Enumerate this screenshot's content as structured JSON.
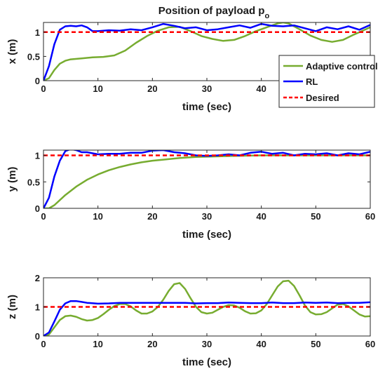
{
  "figure": {
    "title_main": "Position of payload p",
    "title_sub": "o"
  },
  "legend": [
    {
      "label": "Adaptive control",
      "color": "#77ac30",
      "dash": "solid"
    },
    {
      "label": "RL",
      "color": "#0000ff",
      "dash": "solid"
    },
    {
      "label": "Desired",
      "color": "#ff0000",
      "dash": "dashed"
    }
  ],
  "chart_data": [
    {
      "type": "line",
      "ylabel": "x (m)",
      "xlabel": "time (sec)",
      "xlim": [
        0,
        60
      ],
      "ylim": [
        0,
        1.2
      ],
      "xticks": [
        0,
        10,
        20,
        30,
        40,
        50,
        60
      ],
      "xtick_labels": [
        "0",
        "10",
        "20",
        "30",
        "40",
        "",
        ""
      ],
      "yticks": [
        0,
        0.5,
        1
      ],
      "ytick_labels": [
        "0",
        "0.5",
        "1"
      ],
      "series": [
        {
          "name": "Adaptive control",
          "color": "#77ac30",
          "x": [
            0,
            1,
            2,
            3,
            4,
            5,
            7,
            9,
            11,
            13,
            15,
            17,
            19,
            21,
            23,
            25,
            27,
            29,
            31,
            33,
            35,
            37,
            39,
            41,
            43,
            44,
            45,
            47,
            49,
            51,
            53,
            55,
            57,
            59,
            60
          ],
          "y": [
            0,
            0.05,
            0.22,
            0.35,
            0.41,
            0.44,
            0.46,
            0.48,
            0.49,
            0.52,
            0.62,
            0.78,
            0.92,
            1.03,
            1.1,
            1.11,
            1.02,
            0.92,
            0.86,
            0.82,
            0.84,
            0.92,
            1.02,
            1.1,
            1.18,
            1.2,
            1.18,
            1.06,
            0.93,
            0.84,
            0.8,
            0.84,
            0.95,
            1.05,
            1.1
          ]
        },
        {
          "name": "RL",
          "color": "#0000ff",
          "x": [
            0,
            1,
            2,
            3,
            4,
            5,
            6,
            7,
            8,
            9,
            10,
            12,
            14,
            16,
            18,
            20,
            22,
            24,
            26,
            28,
            30,
            32,
            34,
            36,
            38,
            40,
            42,
            44,
            46,
            48,
            50,
            52,
            54,
            56,
            58,
            60
          ],
          "y": [
            0,
            0.3,
            0.75,
            1.05,
            1.12,
            1.13,
            1.12,
            1.14,
            1.1,
            1.02,
            1.02,
            1.04,
            1.03,
            1.06,
            1.04,
            1.1,
            1.17,
            1.13,
            1.08,
            1.1,
            1.04,
            1.06,
            1.1,
            1.14,
            1.09,
            1.17,
            1.13,
            1.12,
            1.14,
            1.08,
            1.02,
            1.1,
            1.06,
            1.12,
            1.05,
            1.15
          ]
        },
        {
          "name": "Desired",
          "color": "#ff0000",
          "dash": true,
          "x": [
            0,
            60
          ],
          "y": [
            1,
            1
          ]
        }
      ]
    },
    {
      "type": "line",
      "ylabel": "y (m)",
      "xlabel": "time (sec)",
      "xlim": [
        0,
        60
      ],
      "ylim": [
        0,
        1.1
      ],
      "xticks": [
        0,
        10,
        20,
        30,
        40,
        50,
        60
      ],
      "xtick_labels": [
        "0",
        "10",
        "20",
        "30",
        "40",
        "50",
        "60"
      ],
      "yticks": [
        0,
        0.5,
        1
      ],
      "ytick_labels": [
        "0",
        "0.5",
        "1"
      ],
      "series": [
        {
          "name": "Adaptive control",
          "color": "#77ac30",
          "x": [
            0,
            1,
            2,
            4,
            6,
            8,
            10,
            12,
            14,
            16,
            18,
            20,
            22,
            25,
            28,
            31,
            35,
            40,
            45,
            50,
            55,
            60
          ],
          "y": [
            0,
            0.0,
            0.06,
            0.25,
            0.41,
            0.54,
            0.64,
            0.72,
            0.78,
            0.83,
            0.87,
            0.9,
            0.92,
            0.95,
            0.97,
            0.98,
            0.99,
            1.0,
            1.0,
            1.0,
            1.0,
            1.0
          ]
        },
        {
          "name": "RL",
          "color": "#0000ff",
          "x": [
            0,
            1,
            2,
            3,
            4,
            5,
            6,
            7,
            8,
            10,
            12,
            14,
            16,
            18,
            20,
            22,
            24,
            26,
            28,
            30,
            32,
            34,
            36,
            38,
            40,
            42,
            44,
            46,
            48,
            50,
            52,
            54,
            56,
            58,
            60
          ],
          "y": [
            0,
            0.2,
            0.6,
            0.9,
            1.08,
            1.12,
            1.1,
            1.06,
            1.06,
            1.02,
            1.03,
            1.03,
            1.05,
            1.05,
            1.09,
            1.1,
            1.06,
            1.04,
            1.0,
            0.99,
            1.0,
            1.02,
            1.0,
            1.05,
            1.07,
            1.03,
            1.05,
            1.0,
            1.03,
            1.02,
            1.04,
            1.0,
            1.04,
            1.02,
            1.07
          ]
        },
        {
          "name": "Desired",
          "color": "#ff0000",
          "dash": true,
          "x": [
            0,
            60
          ],
          "y": [
            1,
            1
          ]
        }
      ]
    },
    {
      "type": "line",
      "ylabel": "z (m)",
      "xlabel": "time (sec)",
      "xlim": [
        0,
        60
      ],
      "ylim": [
        0,
        2
      ],
      "xticks": [
        0,
        10,
        20,
        30,
        40,
        50,
        60
      ],
      "xtick_labels": [
        "0",
        "10",
        "20",
        "30",
        "40",
        "50",
        "60"
      ],
      "yticks": [
        0,
        1,
        2
      ],
      "ytick_labels": [
        "0",
        "1",
        "2"
      ],
      "series": [
        {
          "name": "Adaptive control",
          "color": "#77ac30",
          "x": [
            0,
            1,
            2,
            3,
            4,
            5,
            6,
            7,
            8,
            9,
            10,
            11,
            12,
            13,
            14,
            15,
            16,
            17,
            18,
            19,
            20,
            21,
            22,
            23,
            24,
            25,
            26,
            27,
            28,
            29,
            30,
            31,
            32,
            33,
            34,
            35,
            36,
            37,
            38,
            39,
            40,
            41,
            42,
            43,
            44,
            45,
            46,
            47,
            48,
            49,
            50,
            51,
            52,
            53,
            54,
            55,
            56,
            57,
            58,
            59,
            60
          ],
          "y": [
            0,
            0.05,
            0.3,
            0.55,
            0.68,
            0.7,
            0.66,
            0.58,
            0.53,
            0.55,
            0.62,
            0.75,
            0.9,
            1.03,
            1.1,
            1.1,
            1.02,
            0.88,
            0.77,
            0.77,
            0.84,
            1.0,
            1.25,
            1.55,
            1.78,
            1.82,
            1.62,
            1.3,
            1.0,
            0.82,
            0.77,
            0.8,
            0.9,
            1.0,
            1.06,
            1.05,
            0.97,
            0.85,
            0.77,
            0.78,
            0.88,
            1.1,
            1.4,
            1.7,
            1.88,
            1.9,
            1.72,
            1.4,
            1.05,
            0.82,
            0.74,
            0.75,
            0.82,
            0.95,
            1.08,
            1.1,
            1.02,
            0.88,
            0.74,
            0.67,
            0.68
          ]
        },
        {
          "name": "RL",
          "color": "#0000ff",
          "x": [
            0,
            1,
            2,
            3,
            4,
            5,
            6,
            7,
            8,
            10,
            12,
            14,
            16,
            18,
            20,
            22,
            24,
            26,
            28,
            30,
            32,
            34,
            36,
            38,
            40,
            42,
            44,
            46,
            48,
            50,
            52,
            54,
            56,
            58,
            60
          ],
          "y": [
            0,
            0.12,
            0.5,
            0.9,
            1.12,
            1.2,
            1.2,
            1.17,
            1.14,
            1.11,
            1.12,
            1.14,
            1.14,
            1.14,
            1.14,
            1.14,
            1.14,
            1.14,
            1.12,
            1.13,
            1.13,
            1.15,
            1.14,
            1.13,
            1.13,
            1.15,
            1.13,
            1.13,
            1.15,
            1.14,
            1.15,
            1.13,
            1.14,
            1.14,
            1.16
          ]
        },
        {
          "name": "Desired",
          "color": "#ff0000",
          "dash": true,
          "x": [
            0,
            60
          ],
          "y": [
            1,
            1
          ]
        }
      ]
    }
  ]
}
